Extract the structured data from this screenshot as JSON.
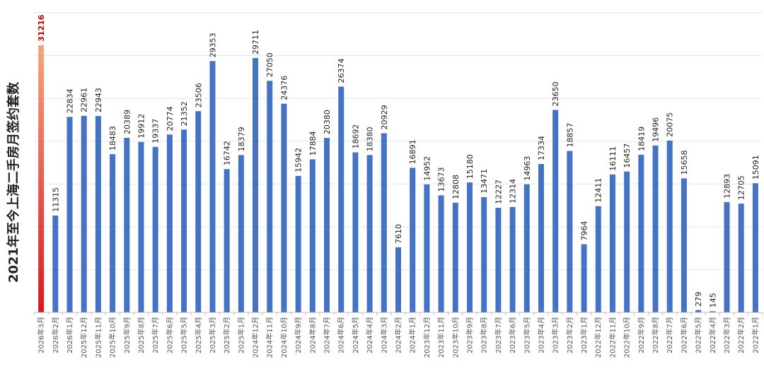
{
  "chart_data": {
    "type": "bar",
    "title": "",
    "xlabel": "",
    "ylabel": "2021年至今上海二手房月签约套数",
    "ylim": [
      0,
      35000
    ],
    "grid": true,
    "legend": "none",
    "colors": {
      "bar": "#4472c4",
      "highlight_top": "#f4a582",
      "highlight_bottom": "#d7191c",
      "highlight_label": "#c00000"
    },
    "highlight_index": 0,
    "categories": [
      "2026年3月",
      "2026年2月",
      "2026年1月",
      "2025年12月",
      "2025年11月",
      "2025年10月",
      "2025年9月",
      "2025年8月",
      "2025年7月",
      "2025年6月",
      "2025年5月",
      "2025年4月",
      "2025年3月",
      "2025年2月",
      "2025年1月",
      "2024年12月",
      "2024年11月",
      "2024年10月",
      "2024年9月",
      "2024年8月",
      "2024年7月",
      "2024年6月",
      "2024年5月",
      "2024年4月",
      "2024年3月",
      "2024年2月",
      "2024年1月",
      "2023年12月",
      "2023年11月",
      "2023年10月",
      "2023年9月",
      "2023年8月",
      "2023年7月",
      "2023年6月",
      "2023年5月",
      "2023年4月",
      "2023年3月",
      "2023年2月",
      "2023年1月",
      "2022年12月",
      "2022年11月",
      "2022年10月",
      "2022年9月",
      "2022年8月",
      "2022年7月",
      "2022年6月",
      "2022年5月",
      "2022年4月",
      "2022年3月",
      "2022年2月",
      "2022年1月"
    ],
    "values": [
      31216,
      11315,
      22834,
      22961,
      22943,
      18483,
      20389,
      19912,
      19337,
      20774,
      21352,
      23506,
      29353,
      16742,
      18379,
      29711,
      27050,
      24376,
      15942,
      17884,
      20380,
      26374,
      18692,
      18380,
      20929,
      7610,
      16891,
      14952,
      13673,
      12808,
      15180,
      13471,
      12227,
      12314,
      14963,
      17334,
      23650,
      18857,
      7964,
      12411,
      16111,
      16457,
      18419,
      19496,
      20075,
      15658,
      279,
      145,
      12893,
      12705,
      15091
    ]
  }
}
